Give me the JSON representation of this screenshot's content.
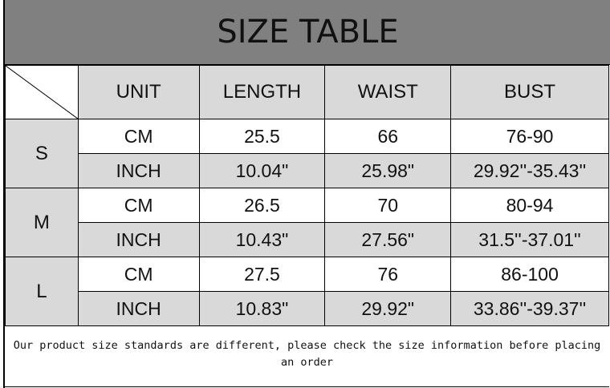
{
  "title": "SIZE TABLE",
  "headers": [
    "UNIT",
    "LENGTH",
    "WAIST",
    "BUST"
  ],
  "sizes": [
    {
      "size": "S",
      "rows": [
        {
          "unit": "CM",
          "length": "25.5",
          "waist": "66",
          "bust": "76-90"
        },
        {
          "unit": "INCH",
          "length": "10.04\"",
          "waist": "25.98\"",
          "bust": "29.92''-35.43''"
        }
      ]
    },
    {
      "size": "M",
      "rows": [
        {
          "unit": "CM",
          "length": "26.5",
          "waist": "70",
          "bust": "80-94"
        },
        {
          "unit": "INCH",
          "length": "10.43\"",
          "waist": "27.56\"",
          "bust": "31.5''-37.01''"
        }
      ]
    },
    {
      "size": "L",
      "rows": [
        {
          "unit": "CM",
          "length": "27.5",
          "waist": "76",
          "bust": "86-100"
        },
        {
          "unit": "INCH",
          "length": "10.83\"",
          "waist": "29.92\"",
          "bust": "33.86''-39.37''"
        }
      ]
    }
  ],
  "note": "Our product size standards are different, please check the size information before placing an order",
  "colors": {
    "title_bg": "#808080",
    "cell_gray": "#d9d9d9"
  }
}
